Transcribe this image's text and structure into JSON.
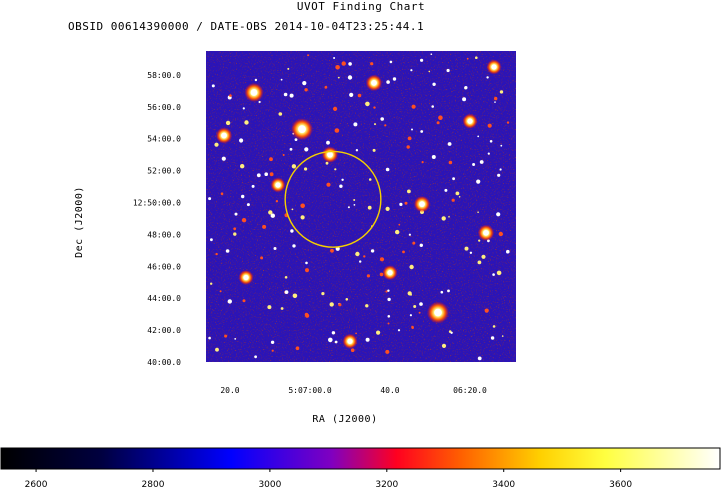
{
  "header": {
    "title": "UVOT Finding Chart",
    "subtitle": "OBSID 00614390000 / DATE-OBS 2014-10-04T23:25:44.1"
  },
  "chart_data": {
    "type": "heatmap",
    "title": "UVOT Finding Chart",
    "subtitle": "OBSID 00614390000 / DATE-OBS 2014-10-04T23:25:44.1",
    "xlabel": "RA (J2000)",
    "ylabel": "Dec (J2000)",
    "x_ticks": [
      "20.0",
      "5:07:00.0",
      "40.0",
      "06:20.0"
    ],
    "y_ticks": [
      "58:00.0",
      "56:00.0",
      "54:00.0",
      "52:00.0",
      "12:50:00.0",
      "48:00.0",
      "46:00.0",
      "44:00.0",
      "42:00.0",
      "40:00.0"
    ],
    "y_tick_arcmin": [
      58,
      56,
      54,
      52,
      50,
      48,
      46,
      44,
      42,
      40
    ],
    "ylim_arcmin": [
      40,
      59.5
    ],
    "x_tick_seconds": [
      20,
      60,
      100,
      140
    ],
    "xlim_seconds": [
      8,
      163
    ],
    "ra_axis_reversed": false,
    "region_circle": {
      "shape": "circle",
      "color": "#f5d000",
      "center_ra_seconds": 71.5,
      "center_dec_arcmin": 50.2,
      "radius_arcmin": 3.0
    },
    "colorbar": {
      "ticks": [
        2600,
        2800,
        3000,
        3200,
        3400,
        3600
      ],
      "range": [
        2540,
        3770
      ],
      "colormap": "heat: black-blue-red-yellow-white"
    },
    "bright_sources": [
      {
        "ra_seconds": 56,
        "dec_arcmin": 54.6,
        "brightness": 1.0
      },
      {
        "ra_seconds": 124,
        "dec_arcmin": 43.1,
        "brightness": 1.0
      },
      {
        "ra_seconds": 32,
        "dec_arcmin": 56.9,
        "brightness": 0.8
      },
      {
        "ra_seconds": 17,
        "dec_arcmin": 54.2,
        "brightness": 0.6
      },
      {
        "ra_seconds": 70,
        "dec_arcmin": 53.0,
        "brightness": 0.6
      },
      {
        "ra_seconds": 44,
        "dec_arcmin": 51.1,
        "brightness": 0.5
      },
      {
        "ra_seconds": 116,
        "dec_arcmin": 49.9,
        "brightness": 0.6
      },
      {
        "ra_seconds": 148,
        "dec_arcmin": 48.1,
        "brightness": 0.6
      },
      {
        "ra_seconds": 92,
        "dec_arcmin": 57.5,
        "brightness": 0.6
      },
      {
        "ra_seconds": 28,
        "dec_arcmin": 45.3,
        "brightness": 0.5
      },
      {
        "ra_seconds": 140,
        "dec_arcmin": 55.1,
        "brightness": 0.5
      },
      {
        "ra_seconds": 80,
        "dec_arcmin": 41.3,
        "brightness": 0.5
      },
      {
        "ra_seconds": 100,
        "dec_arcmin": 45.6,
        "brightness": 0.5
      },
      {
        "ra_seconds": 152,
        "dec_arcmin": 58.5,
        "brightness": 0.5
      }
    ]
  }
}
